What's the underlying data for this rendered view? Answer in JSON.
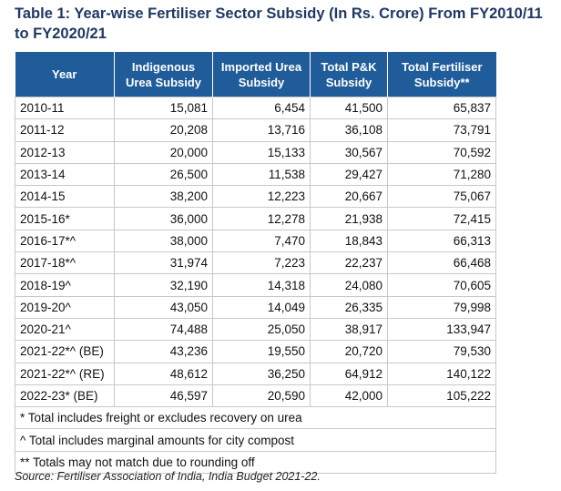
{
  "title": "Table 1: Year-wise Fertiliser Sector Subsidy (In Rs. Crore) From FY2010/11 to FY2020/21",
  "columns": [
    "Year",
    "Indigenous Urea Subsidy",
    "Imported Urea Subsidy",
    "Total P&K Subsidy",
    "Total Fertiliser Subsidy**"
  ],
  "rows": [
    [
      "2010-11",
      "15,081",
      "6,454",
      "41,500",
      "65,837"
    ],
    [
      "2011-12",
      "20,208",
      "13,716",
      "36,108",
      "73,791"
    ],
    [
      "2012-13",
      "20,000",
      "15,133",
      "30,567",
      "70,592"
    ],
    [
      "2013-14",
      "26,500",
      "11,538",
      "29,427",
      "71,280"
    ],
    [
      "2014-15",
      "38,200",
      "12,223",
      "20,667",
      "75,067"
    ],
    [
      "2015-16*",
      "36,000",
      "12,278",
      "21,938",
      "72,415"
    ],
    [
      "2016-17*^",
      "38,000",
      "7,470",
      "18,843",
      "66,313"
    ],
    [
      "2017-18*^",
      "31,974",
      "7,223",
      "22,237",
      "66,468"
    ],
    [
      "2018-19^",
      "32,190",
      "14,318",
      "24,080",
      "70,605"
    ],
    [
      "2019-20^",
      "43,050",
      "14,049",
      "26,335",
      "79,998"
    ],
    [
      "2020-21^",
      "74,488",
      "25,050",
      "38,917",
      "133,947"
    ],
    [
      "2021-22*^ (BE)",
      "43,236",
      "19,550",
      "20,720",
      "79,530"
    ],
    [
      "2021-22*^ (RE)",
      "48,612",
      "36,250",
      "64,912",
      "140,122"
    ],
    [
      "2022-23* (BE)",
      "46,597",
      "20,590",
      "42,000",
      "105,222"
    ]
  ],
  "notes": [
    "* Total includes freight or excludes recovery on urea",
    "^ Total includes marginal amounts for city compost",
    "** Totals may not match due to rounding off"
  ],
  "source": "Source: Fertiliser Association of India, India Budget 2021-22.",
  "colors": {
    "header_bg": "#1f5c99",
    "title": "#1f3864"
  }
}
